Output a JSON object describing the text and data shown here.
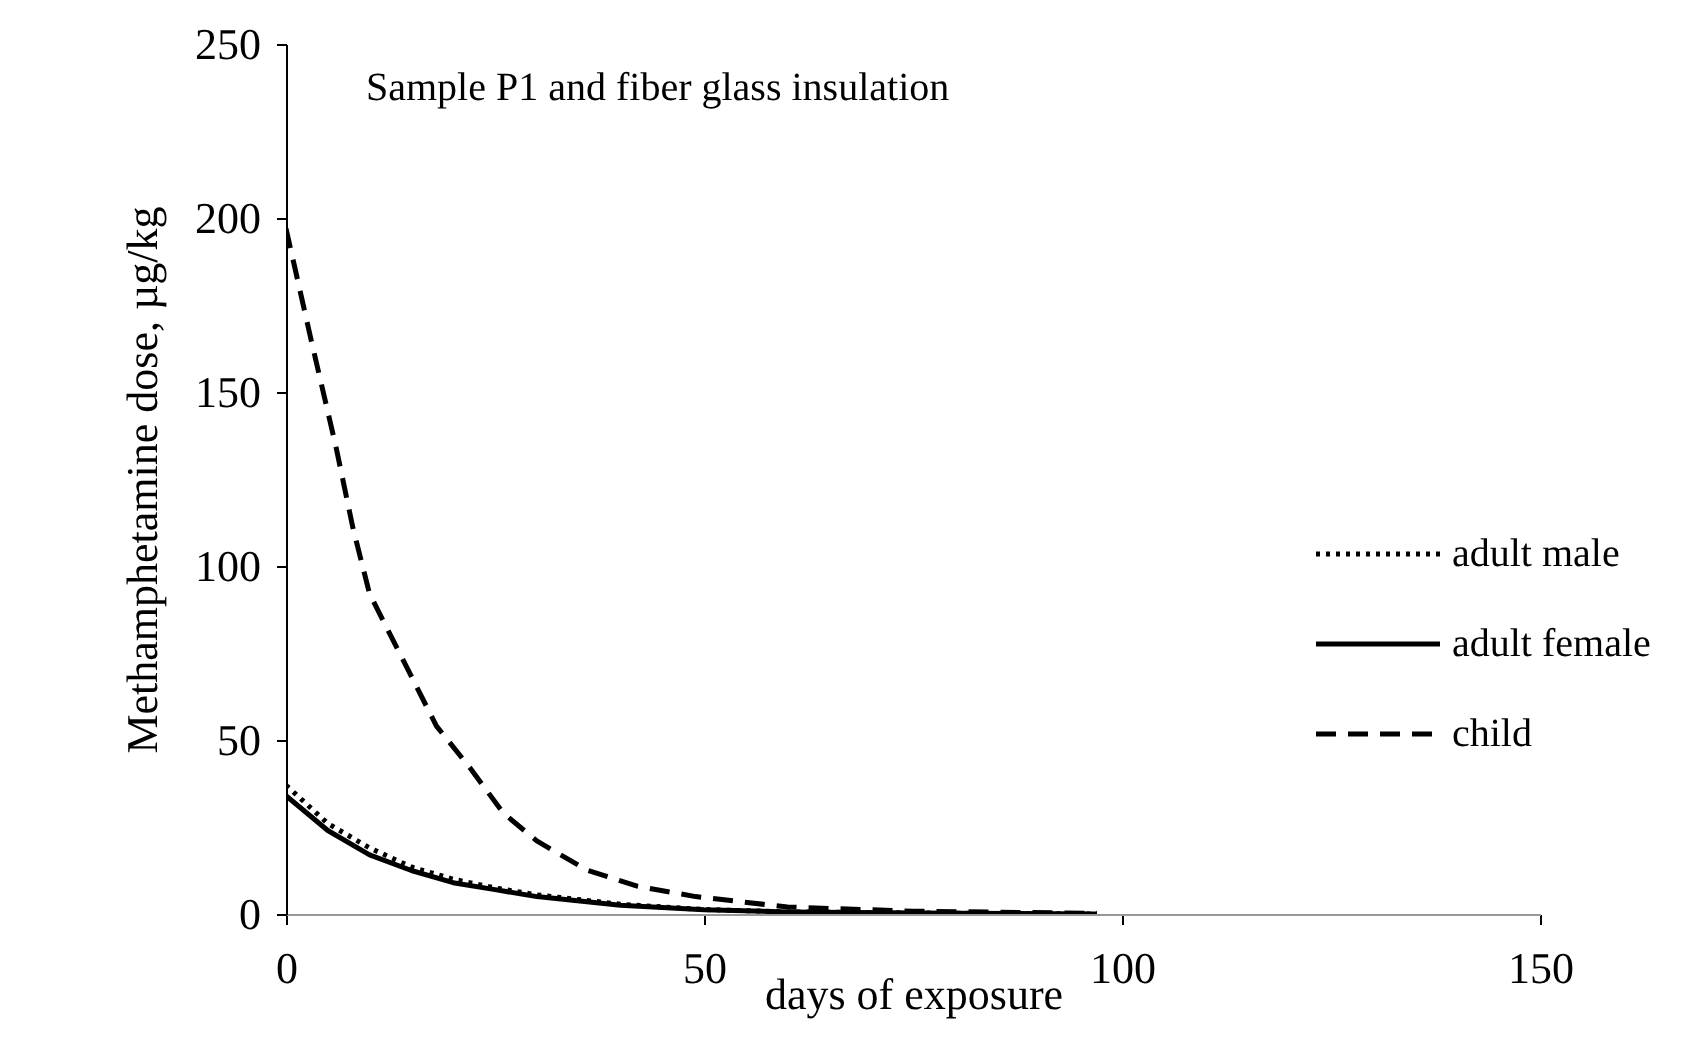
{
  "chart_data": {
    "type": "line",
    "title": "Sample P1 and fiber glass insulation",
    "xlabel": "days of exposure",
    "ylabel": "Methamphetamine dose, µg/kg",
    "xlim": [
      0,
      150
    ],
    "xticks": [
      0,
      50,
      100,
      150
    ],
    "ylim": [
      0,
      250
    ],
    "yticks": [
      0,
      50,
      100,
      150,
      200,
      250
    ],
    "grid": false,
    "legend": "right",
    "series": [
      {
        "name": "adult male",
        "color": "#000000",
        "line_style": "dotted",
        "x": [
          0,
          5,
          10,
          15,
          20,
          25,
          30,
          40,
          50,
          60,
          80,
          97
        ],
        "values": [
          37,
          26,
          19,
          13.5,
          10,
          7.5,
          5.5,
          2.8,
          1.3,
          0.6,
          0.2,
          0
        ]
      },
      {
        "name": "adult female",
        "color": "#000000",
        "line_style": "solid",
        "x": [
          0,
          5,
          10,
          15,
          20,
          25,
          30,
          40,
          50,
          60,
          80,
          97
        ],
        "values": [
          34,
          24,
          17,
          12.5,
          9,
          7,
          5,
          2.5,
          1.2,
          0.6,
          0.2,
          0
        ]
      },
      {
        "name": "child",
        "color": "#000000",
        "line_style": "dashed",
        "x": [
          0,
          3,
          6,
          8,
          10,
          14,
          18,
          22,
          26,
          30,
          36,
          42,
          49,
          60,
          75,
          97
        ],
        "values": [
          197,
          165,
          134,
          111,
          92,
          73,
          54,
          42,
          29,
          21,
          12.6,
          8,
          5,
          2,
          0.8,
          0.2
        ]
      }
    ]
  }
}
